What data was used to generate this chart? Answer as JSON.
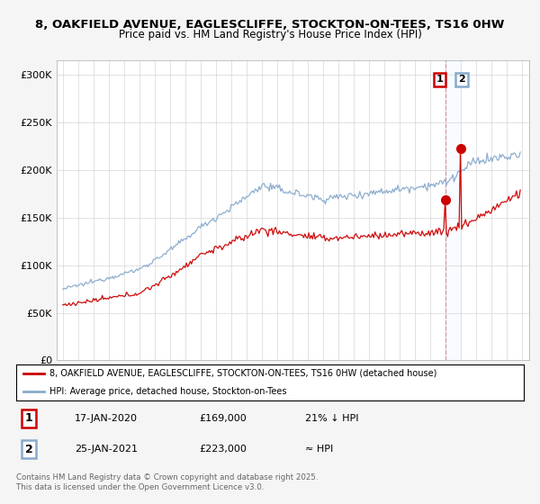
{
  "title_line1": "8, OAKFIELD AVENUE, EAGLESCLIFFE, STOCKTON-ON-TEES, TS16 0HW",
  "title_line2": "Price paid vs. HM Land Registry's House Price Index (HPI)",
  "ytick_labels": [
    "£0",
    "£50K",
    "£100K",
    "£150K",
    "£200K",
    "£250K",
    "£300K"
  ],
  "legend_line1": "8, OAKFIELD AVENUE, EAGLESCLIFFE, STOCKTON-ON-TEES, TS16 0HW (detached house)",
  "legend_line2": "HPI: Average price, detached house, Stockton-on-Tees",
  "transaction1_date": "17-JAN-2020",
  "transaction1_price": "£169,000",
  "transaction1_hpi": "21% ↓ HPI",
  "transaction2_date": "25-JAN-2021",
  "transaction2_price": "£223,000",
  "transaction2_hpi": "≈ HPI",
  "footnote": "Contains HM Land Registry data © Crown copyright and database right 2025.\nThis data is licensed under the Open Government Licence v3.0.",
  "red_color": "#cc0000",
  "blue_color": "#88aacc",
  "shaded_color": "#ddeeff",
  "bg_color": "#f5f5f5"
}
